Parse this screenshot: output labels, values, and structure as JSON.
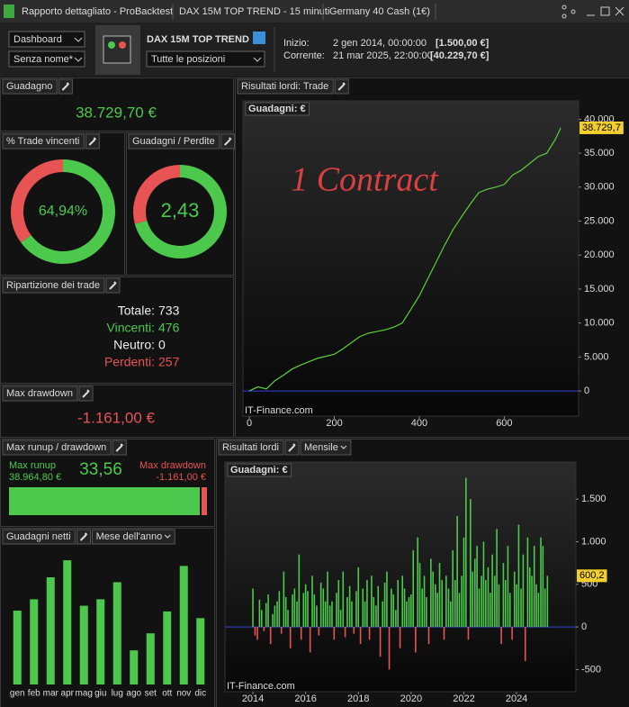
{
  "window": {
    "title": "Rapporto dettagliato - ProBacktest",
    "tabs": [
      "DAX 15M TOP TREND - 15 minuti",
      "Germany 40 Cash (1€)"
    ]
  },
  "toolbar": {
    "view": "Dashboard",
    "preset": "Senza nome*",
    "strategy": "DAX 15M TOP TREND",
    "positions": "Tutte le posizioni",
    "start_label": "Inizio:",
    "start_date": "2 gen 2014, 00:00:00",
    "start_value": "[1.500,00 €]",
    "current_label": "Corrente:",
    "current_date": "21 mar 2025, 22:00:00",
    "current_value": "[40.229,70 €]"
  },
  "panels": {
    "guadagno": {
      "title": "Guadagno",
      "value": "38.729,70 €"
    },
    "ripartizione": {
      "title": "Ripartizione dei trade",
      "rows": [
        [
          "Totale:",
          "733"
        ],
        [
          "Vincenti:",
          "476"
        ],
        [
          "Neutro:",
          "0"
        ],
        [
          "Perdenti:",
          "257"
        ]
      ]
    },
    "max_drawdown": {
      "title": "Max drawdown",
      "value": "-1.161,00 €"
    },
    "runup": {
      "title": "Max runup / drawdown",
      "runup_label": "Max runup",
      "runup_value": "38.964,80 €",
      "ratio": "33,56",
      "drawdown_label": "Max drawdown",
      "drawdown_value": "-1.161,00 €"
    }
  },
  "chart_data": [
    {
      "type": "pie",
      "title": "% Trade vincenti",
      "values": [
        64.94,
        35.06
      ],
      "colors": [
        "#4cc94c",
        "#e85454"
      ],
      "center_label": "64,94%"
    },
    {
      "type": "pie",
      "title": "Guadagni / Perdite",
      "values": [
        70.8,
        29.2
      ],
      "colors": [
        "#4cc94c",
        "#e85454"
      ],
      "center_label": "2,43"
    },
    {
      "type": "line",
      "title": "Risultati lordi: Trade",
      "y_label": "Guadagni: €",
      "annotation": "1 Contract",
      "source": "IT-Finance.com",
      "color": "#5ccf3a",
      "last_value_label": "38.729,7",
      "x": [
        0,
        20,
        40,
        60,
        80,
        100,
        120,
        140,
        160,
        180,
        200,
        220,
        240,
        260,
        280,
        300,
        320,
        340,
        360,
        380,
        400,
        420,
        440,
        460,
        480,
        500,
        520,
        540,
        560,
        580,
        600,
        620,
        640,
        660,
        680,
        700,
        720,
        733
      ],
      "values": [
        0,
        600,
        300,
        1500,
        2300,
        3200,
        3800,
        4300,
        4800,
        5100,
        5400,
        6200,
        7100,
        8000,
        8500,
        8750,
        9000,
        9400,
        10000,
        12000,
        14000,
        16500,
        19000,
        21500,
        23800,
        25700,
        27500,
        29200,
        29700,
        30000,
        30400,
        31800,
        32500,
        33500,
        34500,
        35000,
        37000,
        38729.7
      ],
      "xlim": [
        -15,
        775
      ],
      "ylim": [
        -3700,
        42700
      ],
      "xticks": [
        0,
        200,
        400,
        600
      ],
      "yticks": [
        {
          "value": 40000,
          "label": "40.000"
        },
        {
          "value": 35000,
          "label": "35.000"
        },
        {
          "value": 30000,
          "label": "30.000"
        },
        {
          "value": 25000,
          "label": "25.000"
        },
        {
          "value": 20000,
          "label": "20.000"
        },
        {
          "value": 15000,
          "label": "15.000"
        },
        {
          "value": 10000,
          "label": "10.000"
        },
        {
          "value": 5000,
          "label": "5.000"
        },
        0
      ]
    },
    {
      "type": "bar",
      "title": "Risultati lordi",
      "period": "Mensile",
      "y_label": "Guadagni: €",
      "source": "IT-Finance.com",
      "colors": [
        "#4cc94c",
        "#e85454"
      ],
      "last_value_label": "600,2",
      "x": [
        2014,
        2014.08,
        2014.17,
        2014.25,
        2014.33,
        2014.42,
        2014.5,
        2014.58,
        2014.67,
        2014.75,
        2014.83,
        2014.92,
        2015,
        2015.08,
        2015.17,
        2015.25,
        2015.33,
        2015.42,
        2015.5,
        2015.58,
        2015.67,
        2015.75,
        2015.83,
        2015.92,
        2016,
        2016.08,
        2016.17,
        2016.25,
        2016.33,
        2016.42,
        2016.5,
        2016.58,
        2016.67,
        2016.75,
        2016.83,
        2016.92,
        2017,
        2017.08,
        2017.17,
        2017.25,
        2017.33,
        2017.42,
        2017.5,
        2017.58,
        2017.67,
        2017.75,
        2017.83,
        2017.92,
        2018,
        2018.08,
        2018.17,
        2018.25,
        2018.33,
        2018.42,
        2018.5,
        2018.58,
        2018.67,
        2018.75,
        2018.83,
        2018.92,
        2019,
        2019.08,
        2019.17,
        2019.25,
        2019.33,
        2019.42,
        2019.5,
        2019.58,
        2019.67,
        2019.75,
        2019.83,
        2019.92,
        2020,
        2020.08,
        2020.17,
        2020.25,
        2020.33,
        2020.42,
        2020.5,
        2020.58,
        2020.67,
        2020.75,
        2020.83,
        2020.92,
        2021,
        2021.08,
        2021.17,
        2021.25,
        2021.33,
        2021.42,
        2021.5,
        2021.58,
        2021.67,
        2021.75,
        2021.83,
        2021.92,
        2022,
        2022.08,
        2022.17,
        2022.25,
        2022.33,
        2022.42,
        2022.5,
        2022.58,
        2022.67,
        2022.75,
        2022.83,
        2022.92,
        2023,
        2023.08,
        2023.17,
        2023.25,
        2023.33,
        2023.42,
        2023.5,
        2023.58,
        2023.67,
        2023.75,
        2023.83,
        2023.92,
        2024,
        2024.08,
        2024.17,
        2024.25,
        2024.33,
        2024.42,
        2024.5,
        2024.58,
        2024.67,
        2024.75,
        2024.83,
        2024.92,
        2025,
        2025.08,
        2025.17
      ],
      "values": [
        450,
        -100,
        -150,
        320,
        200,
        -50,
        280,
        380,
        -200,
        150,
        250,
        300,
        420,
        -80,
        650,
        350,
        200,
        -250,
        380,
        450,
        300,
        850,
        -150,
        400,
        500,
        420,
        -300,
        600,
        380,
        250,
        -100,
        520,
        450,
        300,
        650,
        250,
        300,
        -150,
        400,
        550,
        200,
        650,
        -120,
        350,
        480,
        300,
        -80,
        420,
        700,
        -200,
        450,
        300,
        550,
        -150,
        600,
        350,
        250,
        480,
        -350,
        300,
        520,
        650,
        -500,
        450,
        380,
        200,
        550,
        -250,
        600,
        450,
        300,
        350,
        380,
        900,
        -300,
        1050,
        750,
        450,
        600,
        350,
        -200,
        800,
        650,
        500,
        400,
        750,
        550,
        -150,
        600,
        450,
        300,
        900,
        550,
        1300,
        400,
        600,
        1050,
        1750,
        -150,
        1500,
        650,
        800,
        950,
        450,
        600,
        1000,
        550,
        700,
        400,
        850,
        600,
        1150,
        500,
        -200,
        750,
        550,
        950,
        400,
        -150,
        650,
        500,
        1200,
        450,
        850,
        -400,
        1050,
        700,
        600,
        950,
        500,
        400,
        1050,
        950,
        450,
        600.2
      ],
      "xlim": [
        2012.94,
        2026.25
      ],
      "ylim": [
        -760,
        1935
      ],
      "xticks": [
        2014,
        2016,
        2018,
        2020,
        2022,
        2024
      ],
      "yticks": [
        {
          "value": 1500,
          "label": "1.500"
        },
        {
          "value": 1000,
          "label": "1.000"
        },
        500,
        0,
        -500
      ]
    },
    {
      "type": "bar",
      "title": "Guadagni netti",
      "period": "Mese dell'anno",
      "colors": [
        "#4cc94c",
        "#e85454"
      ],
      "categories": [
        "gen",
        "feb",
        "mar",
        "apr",
        "mag",
        "giu",
        "lug",
        "ago",
        "set",
        "ott",
        "nov",
        "dic"
      ],
      "values": [
        2860,
        3300,
        4150,
        4810,
        3050,
        3300,
        3960,
        1320,
        1980,
        2830,
        4590,
        2570
      ],
      "ylim": [
        0,
        5580
      ]
    }
  ]
}
